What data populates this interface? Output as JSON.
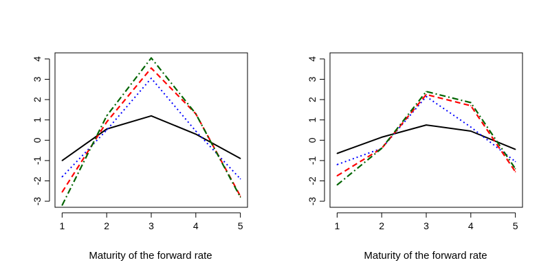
{
  "chart_data": [
    {
      "type": "line",
      "xlabel": "Maturity of the forward rate",
      "ylabel": "",
      "x": [
        1,
        2,
        3,
        4,
        5
      ],
      "xticks": [
        "1",
        "2",
        "3",
        "4",
        "5"
      ],
      "ylim": [
        -3.3,
        4.3
      ],
      "yticks": [
        "-3",
        "-2",
        "-1",
        "0",
        "1",
        "2",
        "3",
        "4"
      ],
      "grid": false,
      "series": [
        {
          "values": [
            -1.0,
            0.55,
            1.2,
            0.3,
            -0.9
          ],
          "color": "#000000",
          "style": "solid"
        },
        {
          "values": [
            -1.8,
            0.5,
            3.05,
            0.45,
            -1.9
          ],
          "color": "#0000ff",
          "style": "dotted"
        },
        {
          "values": [
            -2.55,
            0.9,
            3.55,
            1.3,
            -2.75
          ],
          "color": "#ff0000",
          "style": "dashed"
        },
        {
          "values": [
            -3.2,
            1.2,
            4.05,
            1.3,
            -2.8
          ],
          "color": "#006400",
          "style": "dashdot"
        }
      ]
    },
    {
      "type": "line",
      "xlabel": "Maturity of the forward rate",
      "ylabel": "",
      "x": [
        1,
        2,
        3,
        4,
        5
      ],
      "xticks": [
        "1",
        "2",
        "3",
        "4",
        "5"
      ],
      "ylim": [
        -3.3,
        4.3
      ],
      "yticks": [
        "-3",
        "-2",
        "-1",
        "0",
        "1",
        "2",
        "3",
        "4"
      ],
      "grid": false,
      "series": [
        {
          "values": [
            -0.65,
            0.15,
            0.75,
            0.45,
            -0.45
          ],
          "color": "#000000",
          "style": "solid"
        },
        {
          "values": [
            -1.2,
            -0.4,
            2.15,
            0.65,
            -1.05
          ],
          "color": "#0000ff",
          "style": "dotted"
        },
        {
          "values": [
            -1.75,
            -0.4,
            2.25,
            1.7,
            -1.55
          ],
          "color": "#ff0000",
          "style": "dashed"
        },
        {
          "values": [
            -2.2,
            -0.4,
            2.4,
            1.85,
            -1.4
          ],
          "color": "#006400",
          "style": "dashdot"
        }
      ]
    }
  ]
}
